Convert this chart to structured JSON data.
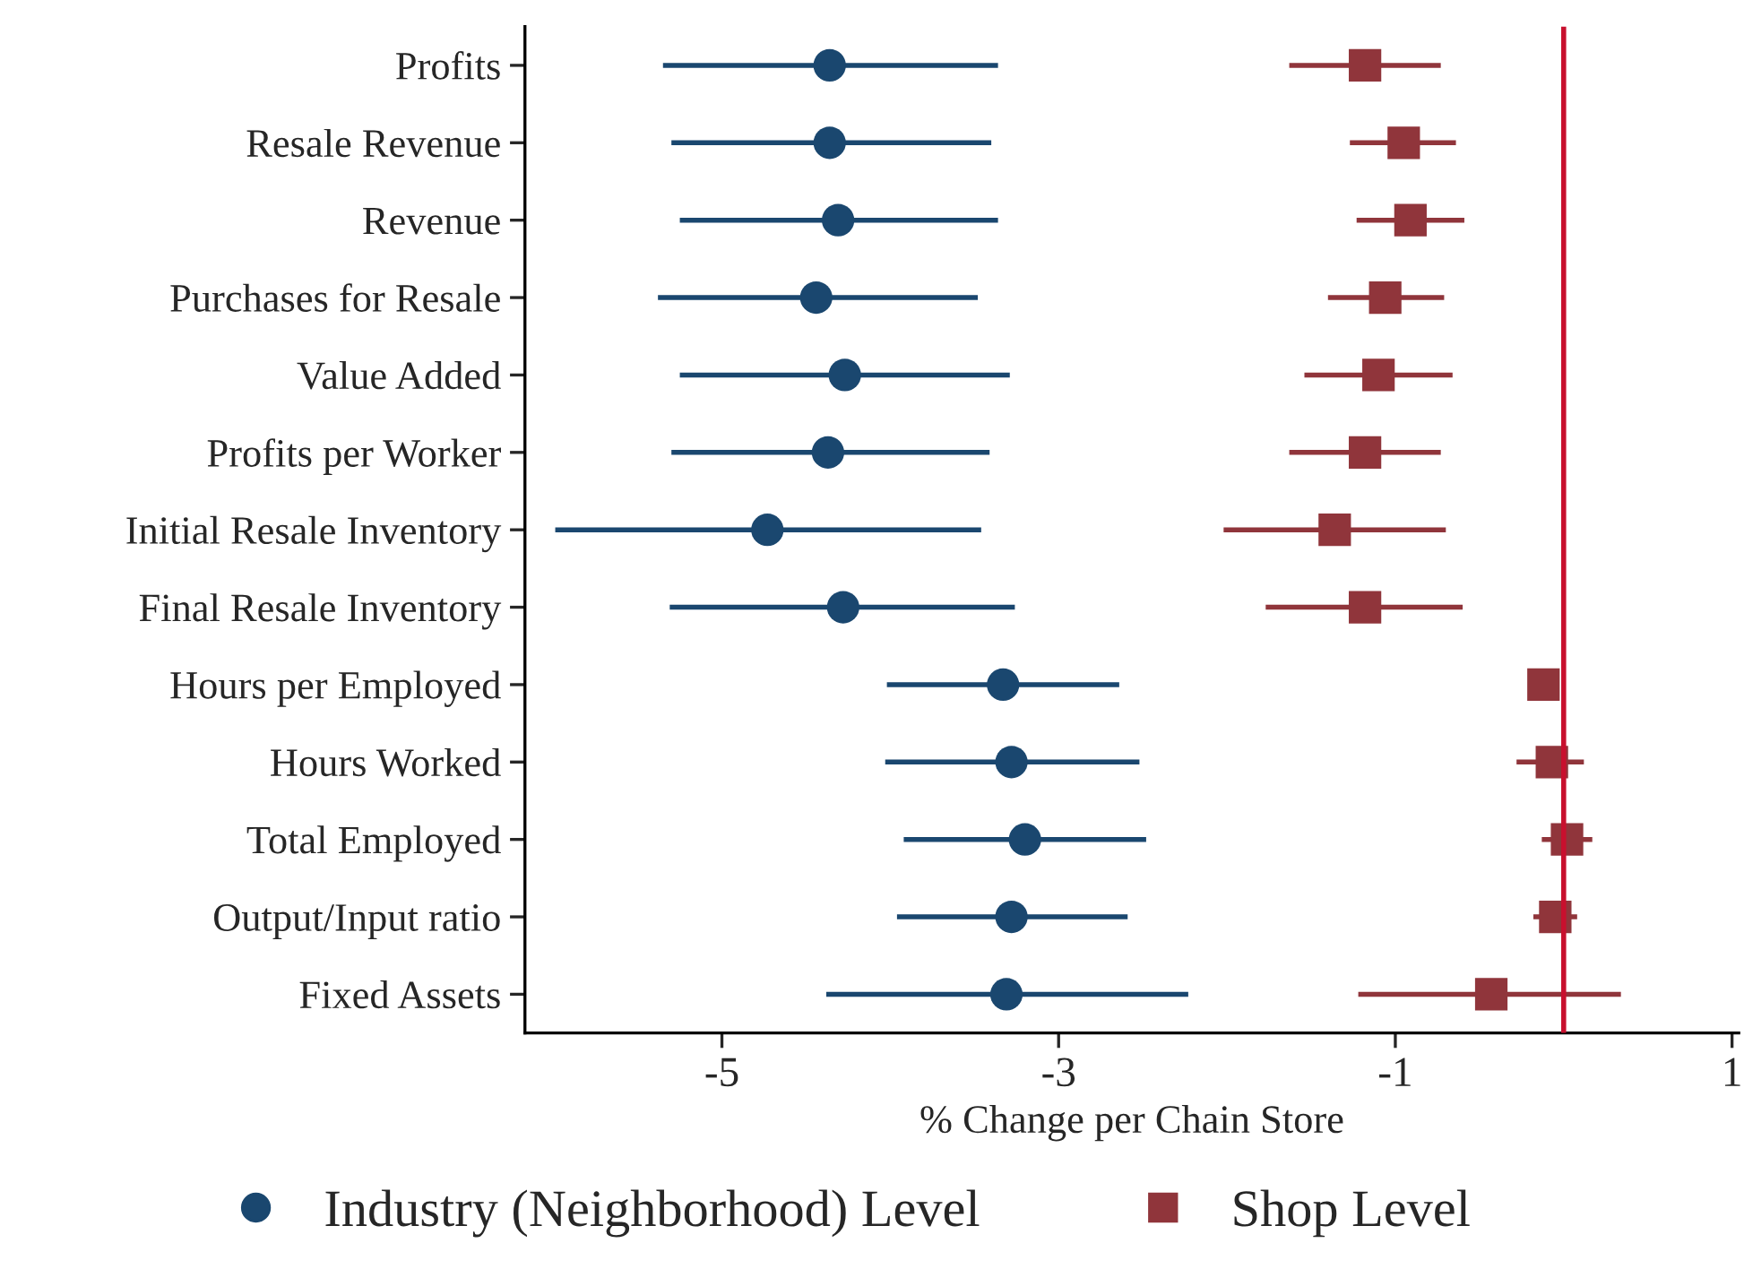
{
  "chart_data": {
    "type": "scatter",
    "orientation": "horizontal",
    "xlabel": "% Change per Chain Store",
    "categories": [
      "Profits",
      "Resale Revenue",
      "Revenue",
      "Purchases for Resale",
      "Value Added",
      "Profits per Worker",
      "Initial Resale Inventory",
      "Final Resale Inventory",
      "Hours per Employed",
      "Hours Worked",
      "Total Employed",
      "Output/Input ratio",
      "Fixed Assets"
    ],
    "series": [
      {
        "name": "Industry (Neighborhood) Level",
        "color": "#1a476f",
        "marker": "circle",
        "values": [
          -4.36,
          -4.36,
          -4.31,
          -4.44,
          -4.27,
          -4.37,
          -4.73,
          -4.28,
          -3.33,
          -3.28,
          -3.2,
          -3.28,
          -3.31
        ],
        "errors": [
          [
            -5.35,
            -3.36
          ],
          [
            -5.3,
            -3.4
          ],
          [
            -5.25,
            -3.36
          ],
          [
            -5.38,
            -3.48
          ],
          [
            -5.25,
            -3.29
          ],
          [
            -5.3,
            -3.41
          ],
          [
            -5.99,
            -3.46
          ],
          [
            -5.31,
            -3.26
          ],
          [
            -4.02,
            -2.64
          ],
          [
            -4.03,
            -2.52
          ],
          [
            -3.92,
            -2.48
          ],
          [
            -3.96,
            -2.59
          ],
          [
            -4.38,
            -2.23
          ]
        ]
      },
      {
        "name": "Shop Level",
        "color": "#90353b",
        "marker": "square",
        "values": [
          -1.18,
          -0.95,
          -0.91,
          -1.06,
          -1.1,
          -1.18,
          -1.36,
          -1.18,
          -0.12,
          -0.07,
          0.02,
          -0.05,
          -0.43
        ],
        "errors": [
          [
            -1.63,
            -0.73
          ],
          [
            -1.27,
            -0.64
          ],
          [
            -1.23,
            -0.59
          ],
          [
            -1.4,
            -0.71
          ],
          [
            -1.54,
            -0.66
          ],
          [
            -1.63,
            -0.73
          ],
          [
            -2.02,
            -0.7
          ],
          [
            -1.77,
            -0.6
          ],
          [
            -0.19,
            -0.05
          ],
          [
            -0.28,
            0.12
          ],
          [
            -0.13,
            0.17
          ],
          [
            -0.18,
            0.08
          ],
          [
            -1.22,
            0.34
          ]
        ]
      }
    ],
    "xlim": [
      -6.17,
      1.04
    ],
    "xticks": [
      -5,
      -3,
      -1,
      1
    ],
    "ref_lines": [
      {
        "axis": "x",
        "value": 0,
        "color": "#c8102e"
      }
    ],
    "grid": false,
    "legend": "bottom"
  }
}
